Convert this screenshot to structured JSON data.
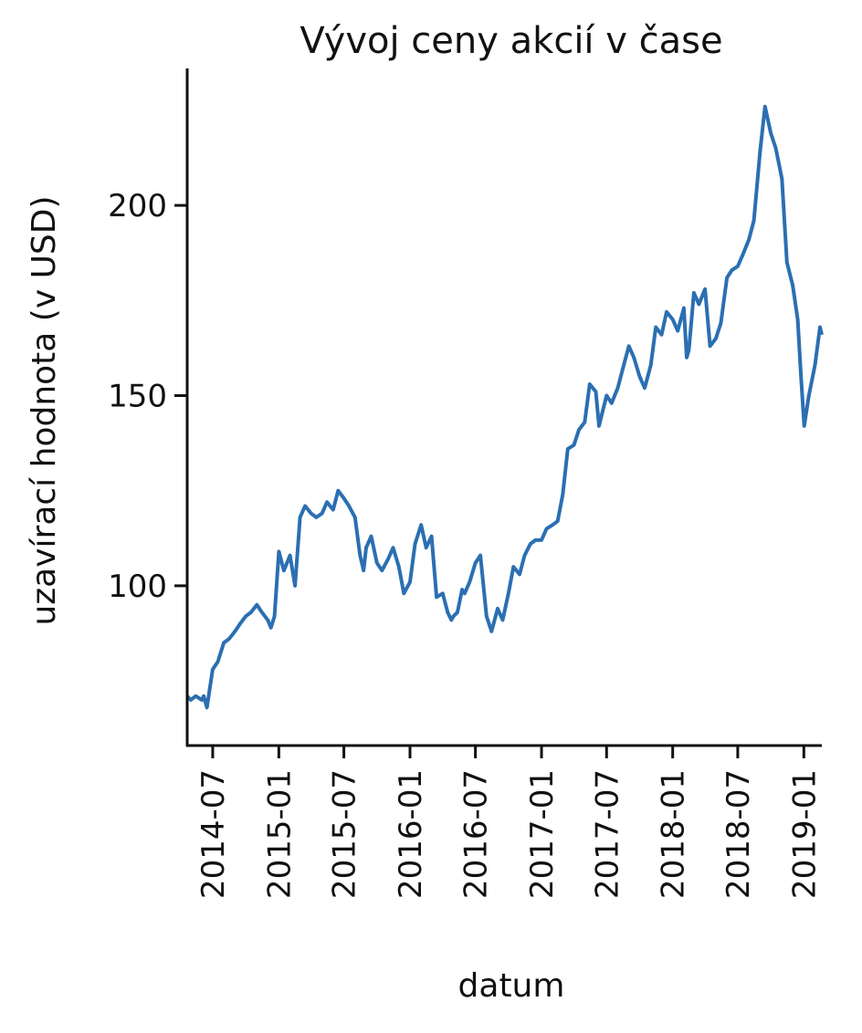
{
  "chart_data": {
    "type": "line",
    "title": "Vývoj ceny akcií v čase",
    "xlabel": "datum",
    "ylabel": "uzavírací hodnota (v USD)",
    "xlim": [
      "2014-04-21",
      "2019-02-20"
    ],
    "ylim": [
      58,
      236
    ],
    "grid": false,
    "yticks": [
      100,
      150,
      200
    ],
    "xticks": [
      "2014-07",
      "2015-01",
      "2015-07",
      "2016-01",
      "2016-07",
      "2017-01",
      "2017-07",
      "2018-01",
      "2018-07",
      "2019-01"
    ],
    "series": [
      {
        "color": "#2b6fb2",
        "x": [
          "2014-04-21",
          "2014-05-01",
          "2014-05-15",
          "2014-06-01",
          "2014-06-06",
          "2014-06-15",
          "2014-07-01",
          "2014-07-15",
          "2014-08-01",
          "2014-08-15",
          "2014-09-01",
          "2014-09-15",
          "2014-10-01",
          "2014-10-15",
          "2014-11-01",
          "2014-11-15",
          "2014-12-01",
          "2014-12-10",
          "2014-12-20",
          "2015-01-01",
          "2015-01-15",
          "2015-02-01",
          "2015-02-15",
          "2015-03-01",
          "2015-03-15",
          "2015-04-01",
          "2015-04-15",
          "2015-05-01",
          "2015-05-15",
          "2015-06-01",
          "2015-06-15",
          "2015-07-01",
          "2015-07-15",
          "2015-08-01",
          "2015-08-15",
          "2015-08-25",
          "2015-09-01",
          "2015-09-15",
          "2015-10-01",
          "2015-10-15",
          "2015-11-01",
          "2015-11-15",
          "2015-12-01",
          "2015-12-15",
          "2016-01-01",
          "2016-01-15",
          "2016-02-01",
          "2016-02-15",
          "2016-03-01",
          "2016-03-15",
          "2016-04-01",
          "2016-04-15",
          "2016-04-25",
          "2016-05-01",
          "2016-05-12",
          "2016-05-25",
          "2016-06-01",
          "2016-06-15",
          "2016-07-01",
          "2016-07-15",
          "2016-08-01",
          "2016-08-15",
          "2016-09-01",
          "2016-09-15",
          "2016-10-01",
          "2016-10-15",
          "2016-11-01",
          "2016-11-15",
          "2016-12-01",
          "2016-12-15",
          "2017-01-01",
          "2017-01-15",
          "2017-02-01",
          "2017-02-15",
          "2017-03-01",
          "2017-03-15",
          "2017-04-01",
          "2017-04-15",
          "2017-05-01",
          "2017-05-15",
          "2017-06-01",
          "2017-06-10",
          "2017-06-15",
          "2017-07-01",
          "2017-07-15",
          "2017-08-01",
          "2017-08-15",
          "2017-09-01",
          "2017-09-15",
          "2017-10-01",
          "2017-10-15",
          "2017-11-01",
          "2017-11-15",
          "2017-12-01",
          "2017-12-15",
          "2018-01-01",
          "2018-01-15",
          "2018-02-01",
          "2018-02-09",
          "2018-02-15",
          "2018-03-01",
          "2018-03-15",
          "2018-04-01",
          "2018-04-15",
          "2018-05-01",
          "2018-05-15",
          "2018-06-01",
          "2018-06-15",
          "2018-07-01",
          "2018-07-15",
          "2018-08-01",
          "2018-08-15",
          "2018-09-01",
          "2018-09-15",
          "2018-10-01",
          "2018-10-15",
          "2018-11-01",
          "2018-11-15",
          "2018-12-01",
          "2018-12-15",
          "2018-12-24",
          "2019-01-02",
          "2019-01-15",
          "2019-02-01",
          "2019-02-15",
          "2019-02-20"
        ],
        "y": [
          71,
          70,
          71,
          70,
          71,
          68,
          78,
          80,
          85,
          86,
          88,
          90,
          92,
          93,
          95,
          93,
          91,
          89,
          92,
          109,
          104,
          108,
          100,
          118,
          121,
          119,
          118,
          119,
          122,
          120,
          125,
          123,
          121,
          118,
          108,
          104,
          110,
          113,
          106,
          104,
          107,
          110,
          105,
          98,
          101,
          111,
          116,
          110,
          113,
          97,
          98,
          93,
          91,
          92,
          93,
          99,
          98,
          101,
          106,
          108,
          92,
          88,
          94,
          91,
          98,
          105,
          103,
          108,
          111,
          112,
          112,
          115,
          116,
          117,
          124,
          136,
          137,
          141,
          143,
          153,
          151,
          142,
          144,
          150,
          148,
          152,
          157,
          163,
          160,
          155,
          152,
          158,
          168,
          166,
          172,
          170,
          167,
          173,
          160,
          162,
          177,
          174,
          178,
          163,
          165,
          169,
          181,
          183,
          184,
          187,
          191,
          196,
          214,
          226,
          219,
          215,
          207,
          185,
          179,
          170,
          155,
          142,
          150,
          158,
          168,
          166
        ]
      }
    ]
  }
}
